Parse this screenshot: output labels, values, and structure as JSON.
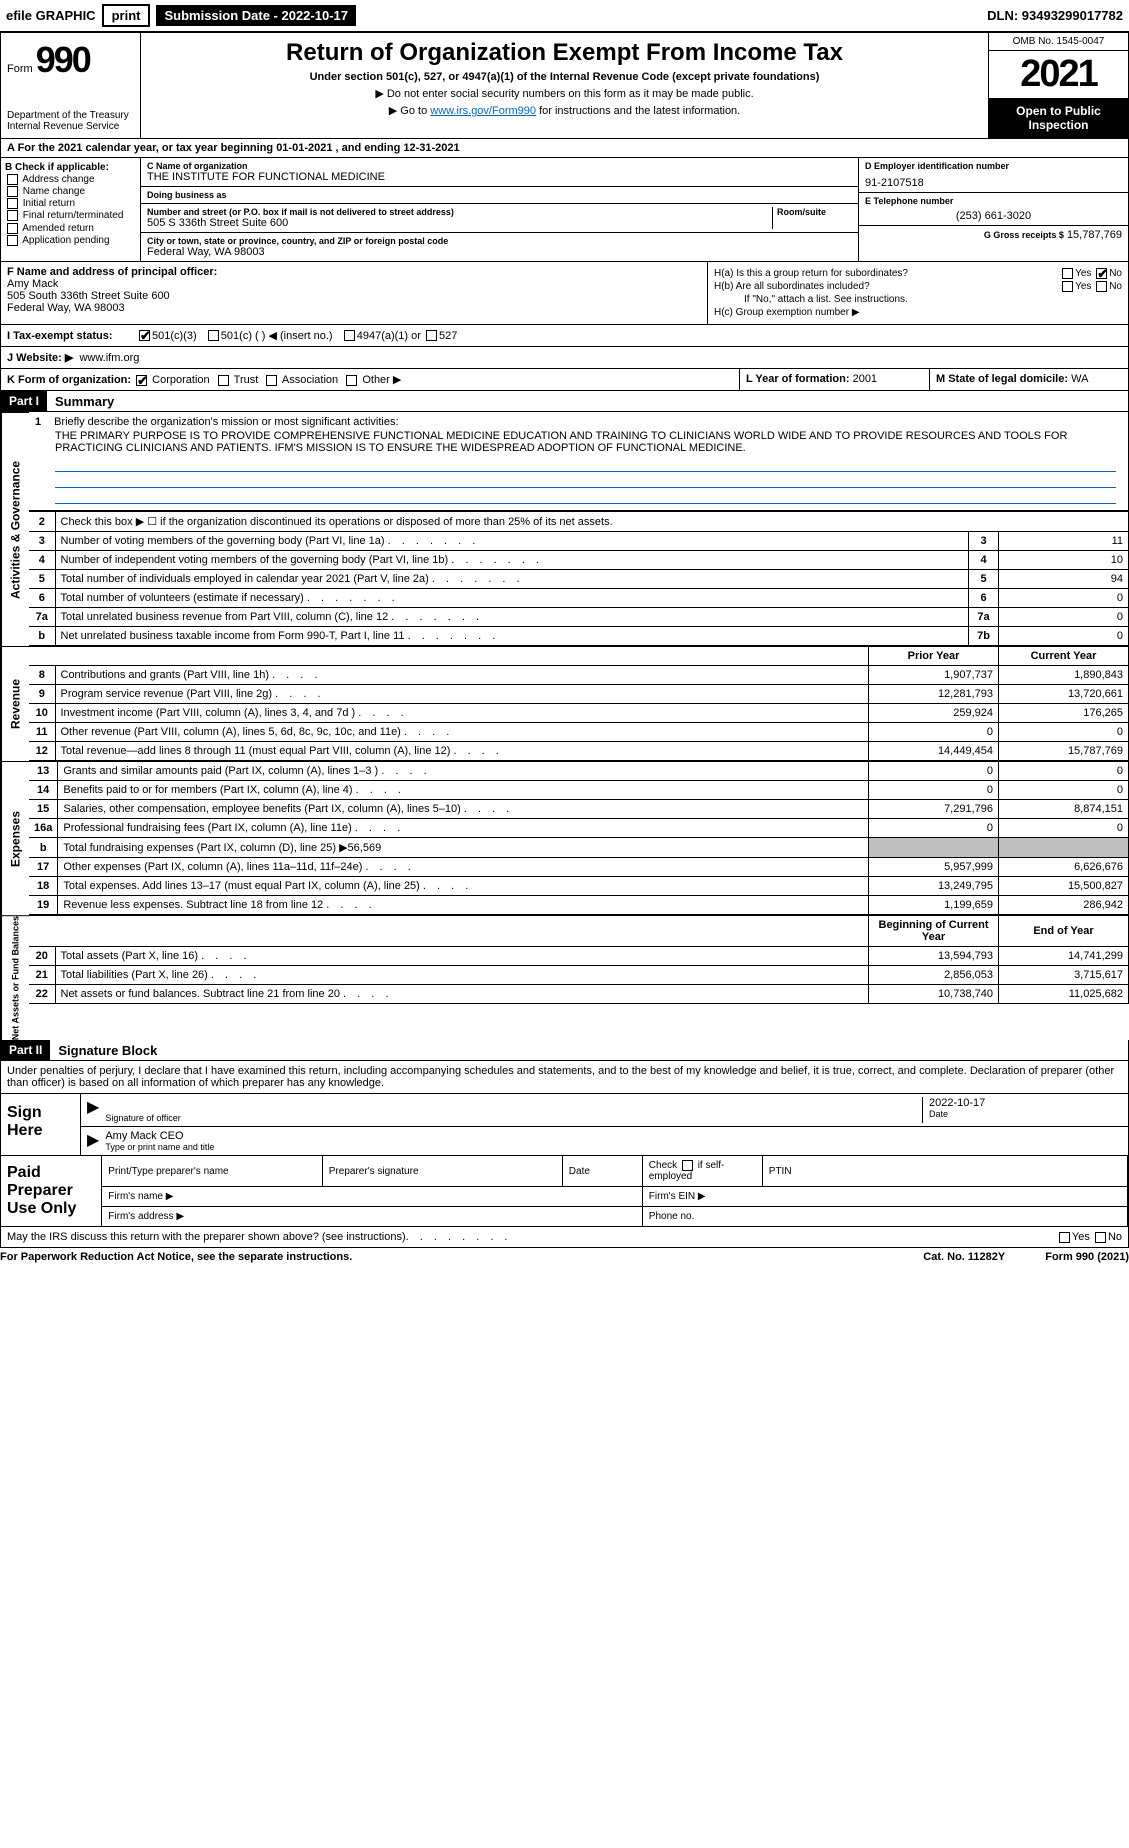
{
  "topbar": {
    "efile": "efile GRAPHIC",
    "print": "print",
    "submission": "Submission Date - 2022-10-17",
    "dln": "DLN: 93493299017782"
  },
  "header": {
    "form_prefix": "Form",
    "form_number": "990",
    "dept": "Department of the Treasury",
    "irs": "Internal Revenue Service",
    "title": "Return of Organization Exempt From Income Tax",
    "subtitle": "Under section 501(c), 527, or 4947(a)(1) of the Internal Revenue Code (except private foundations)",
    "note1": "▶ Do not enter social security numbers on this form as it may be made public.",
    "note2_pre": "▶ Go to ",
    "note2_link": "www.irs.gov/Form990",
    "note2_post": " for instructions and the latest information.",
    "omb": "OMB No. 1545-0047",
    "year": "2021",
    "open_public": "Open to Public Inspection"
  },
  "section_a": "A For the 2021 calendar year, or tax year beginning 01-01-2021     , and ending 12-31-2021",
  "col_b": {
    "header": "B Check if applicable:",
    "opts": [
      "Address change",
      "Name change",
      "Initial return",
      "Final return/terminated",
      "Amended return",
      "Application pending"
    ]
  },
  "col_c": {
    "name_lbl": "C Name of organization",
    "name": "THE INSTITUTE FOR FUNCTIONAL MEDICINE",
    "dba_lbl": "Doing business as",
    "dba": "",
    "street_lbl": "Number and street (or P.O. box if mail is not delivered to street address)",
    "room_lbl": "Room/suite",
    "street": "505 S 336th Street Suite 600",
    "city_lbl": "City or town, state or province, country, and ZIP or foreign postal code",
    "city": "Federal Way, WA  98003"
  },
  "col_d": {
    "ein_lbl": "D Employer identification number",
    "ein": "91-2107518",
    "phone_lbl": "E Telephone number",
    "phone": "(253) 661-3020",
    "gross_lbl": "G Gross receipts $",
    "gross": "15,787,769"
  },
  "row_f": {
    "lbl": "F Name and address of principal officer:",
    "name": "Amy Mack",
    "addr1": "505 South 336th Street Suite 600",
    "addr2": "Federal Way, WA  98003"
  },
  "row_h": {
    "ha": "H(a)  Is this a group return for subordinates?",
    "hb": "H(b)  Are all subordinates included?",
    "hb_note": "If \"No,\" attach a list. See instructions.",
    "hc": "H(c)  Group exemption number ▶",
    "yes": "Yes",
    "no": "No"
  },
  "row_i": {
    "lbl": "I  Tax-exempt status:",
    "o1": "501(c)(3)",
    "o2": "501(c) (    ) ◀ (insert no.)",
    "o3": "4947(a)(1) or",
    "o4": "527"
  },
  "row_j": {
    "lbl": "J  Website: ▶",
    "val": "www.ifm.org"
  },
  "row_k": {
    "lbl": "K Form of organization:",
    "o1": "Corporation",
    "o2": "Trust",
    "o3": "Association",
    "o4": "Other ▶"
  },
  "row_l": {
    "lbl": "L Year of formation:",
    "val": "2001"
  },
  "row_m": {
    "lbl": "M State of legal domicile:",
    "val": "WA"
  },
  "part1": {
    "tag": "Part I",
    "title": "Summary"
  },
  "mission": {
    "num": "1",
    "lbl": "Briefly describe the organization's mission or most significant activities:",
    "text": "THE PRIMARY PURPOSE IS TO PROVIDE COMPREHENSIVE FUNCTIONAL MEDICINE EDUCATION AND TRAINING TO CLINICIANS WORLD WIDE AND TO PROVIDE RESOURCES AND TOOLS FOR PRACTICING CLINICIANS AND PATIENTS. IFM'S MISSION IS TO ENSURE THE WIDESPREAD ADOPTION OF FUNCTIONAL MEDICINE."
  },
  "line2": "Check this box ▶ ☐ if the organization discontinued its operations or disposed of more than 25% of its net assets.",
  "gov_rows": [
    {
      "n": "3",
      "label": "Number of voting members of the governing body (Part VI, line 1a)",
      "key": "3",
      "val": "11"
    },
    {
      "n": "4",
      "label": "Number of independent voting members of the governing body (Part VI, line 1b)",
      "key": "4",
      "val": "10"
    },
    {
      "n": "5",
      "label": "Total number of individuals employed in calendar year 2021 (Part V, line 2a)",
      "key": "5",
      "val": "94"
    },
    {
      "n": "6",
      "label": "Total number of volunteers (estimate if necessary)",
      "key": "6",
      "val": "0"
    },
    {
      "n": "7a",
      "label": "Total unrelated business revenue from Part VIII, column (C), line 12",
      "key": "7a",
      "val": "0"
    },
    {
      "n": "b",
      "label": "Net unrelated business taxable income from Form 990-T, Part I, line 11",
      "key": "7b",
      "val": "0"
    }
  ],
  "col_headers": {
    "prior": "Prior Year",
    "current": "Current Year",
    "boy": "Beginning of Current Year",
    "eoy": "End of Year"
  },
  "revenue_rows": [
    {
      "n": "8",
      "label": "Contributions and grants (Part VIII, line 1h)",
      "prior": "1,907,737",
      "current": "1,890,843"
    },
    {
      "n": "9",
      "label": "Program service revenue (Part VIII, line 2g)",
      "prior": "12,281,793",
      "current": "13,720,661"
    },
    {
      "n": "10",
      "label": "Investment income (Part VIII, column (A), lines 3, 4, and 7d )",
      "prior": "259,924",
      "current": "176,265"
    },
    {
      "n": "11",
      "label": "Other revenue (Part VIII, column (A), lines 5, 6d, 8c, 9c, 10c, and 11e)",
      "prior": "0",
      "current": "0"
    },
    {
      "n": "12",
      "label": "Total revenue—add lines 8 through 11 (must equal Part VIII, column (A), line 12)",
      "prior": "14,449,454",
      "current": "15,787,769"
    }
  ],
  "expense_rows": [
    {
      "n": "13",
      "label": "Grants and similar amounts paid (Part IX, column (A), lines 1–3 )",
      "prior": "0",
      "current": "0"
    },
    {
      "n": "14",
      "label": "Benefits paid to or for members (Part IX, column (A), line 4)",
      "prior": "0",
      "current": "0"
    },
    {
      "n": "15",
      "label": "Salaries, other compensation, employee benefits (Part IX, column (A), lines 5–10)",
      "prior": "7,291,796",
      "current": "8,874,151"
    },
    {
      "n": "16a",
      "label": "Professional fundraising fees (Part IX, column (A), line 11e)",
      "prior": "0",
      "current": "0"
    },
    {
      "n": "b",
      "label": "Total fundraising expenses (Part IX, column (D), line 25) ▶56,569",
      "prior": "",
      "current": "",
      "grey": true
    },
    {
      "n": "17",
      "label": "Other expenses (Part IX, column (A), lines 11a–11d, 11f–24e)",
      "prior": "5,957,999",
      "current": "6,626,676"
    },
    {
      "n": "18",
      "label": "Total expenses. Add lines 13–17 (must equal Part IX, column (A), line 25)",
      "prior": "13,249,795",
      "current": "15,500,827"
    },
    {
      "n": "19",
      "label": "Revenue less expenses. Subtract line 18 from line 12",
      "prior": "1,199,659",
      "current": "286,942"
    }
  ],
  "netassets_rows": [
    {
      "n": "20",
      "label": "Total assets (Part X, line 16)",
      "prior": "13,594,793",
      "current": "14,741,299"
    },
    {
      "n": "21",
      "label": "Total liabilities (Part X, line 26)",
      "prior": "2,856,053",
      "current": "3,715,617"
    },
    {
      "n": "22",
      "label": "Net assets or fund balances. Subtract line 21 from line 20",
      "prior": "10,738,740",
      "current": "11,025,682"
    }
  ],
  "sidebars": {
    "gov": "Activities & Governance",
    "rev": "Revenue",
    "exp": "Expenses",
    "net": "Net Assets or Fund Balances"
  },
  "part2": {
    "tag": "Part II",
    "title": "Signature Block"
  },
  "sig": {
    "decl": "Under penalties of perjury, I declare that I have examined this return, including accompanying schedules and statements, and to the best of my knowledge and belief, it is true, correct, and complete. Declaration of preparer (other than officer) is based on all information of which preparer has any knowledge.",
    "sign_here": "Sign Here",
    "sig_officer": "Signature of officer",
    "date": "Date",
    "date_val": "2022-10-17",
    "name_title": "Amy Mack CEO",
    "name_title_lbl": "Type or print name and title"
  },
  "prep": {
    "title": "Paid Preparer Use Only",
    "h1": "Print/Type preparer's name",
    "h2": "Preparer's signature",
    "h3": "Date",
    "h4_pre": "Check",
    "h4_post": "if self-employed",
    "h5": "PTIN",
    "firm_name": "Firm's name   ▶",
    "firm_ein": "Firm's EIN ▶",
    "firm_addr": "Firm's address ▶",
    "phone": "Phone no."
  },
  "footer": {
    "q": "May the IRS discuss this return with the preparer shown above? (see instructions)",
    "yes": "Yes",
    "no": "No",
    "paperwork": "For Paperwork Reduction Act Notice, see the separate instructions.",
    "cat": "Cat. No. 11282Y",
    "form": "Form 990 (2021)"
  },
  "colors": {
    "link": "#0066cc",
    "black": "#000000",
    "grey": "#c0c0c0"
  }
}
